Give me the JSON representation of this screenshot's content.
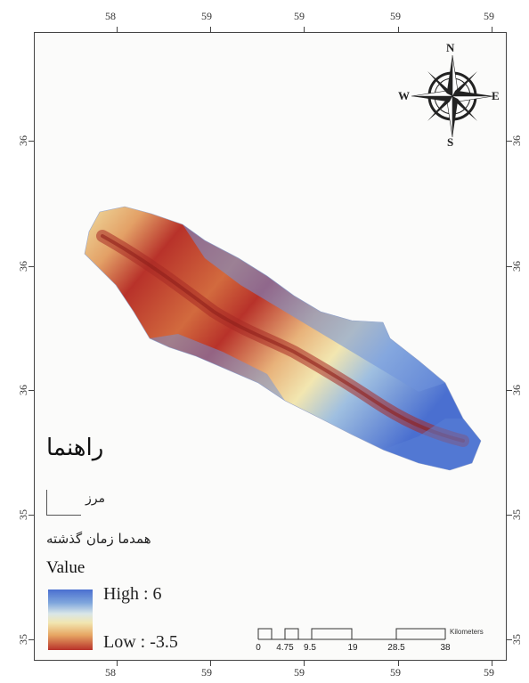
{
  "axis": {
    "top_ticks": [
      "58",
      "59",
      "59",
      "59",
      "59"
    ],
    "bottom_ticks": [
      "58",
      "59",
      "59",
      "59",
      "59"
    ],
    "left_ticks": [
      "36",
      "36",
      "36",
      "35",
      "35"
    ],
    "right_ticks": [
      "36",
      "36",
      "36",
      "35",
      "35"
    ]
  },
  "compass": {
    "n": "N",
    "s": "S",
    "e": "E",
    "w": "W"
  },
  "legend": {
    "title": "راهنما",
    "boundary_label": "مرز",
    "past_label": "همدما زمان گذشته",
    "value_title": "Value",
    "high_label": "High : 6",
    "low_label": "Low : -3.5",
    "ramp_colors": [
      "#4a6fd0",
      "#7fa6dc",
      "#d9e6e8",
      "#f2e6b0",
      "#e7a764",
      "#b8322a"
    ]
  },
  "scale_bar": {
    "unit": "Kilometers",
    "labels": [
      "0",
      "4.75",
      "9.5",
      "19",
      "28.5",
      "38"
    ]
  },
  "colors": {
    "high": "#4a6fd0",
    "low": "#b8322a",
    "mid": "#f2e6b0"
  }
}
